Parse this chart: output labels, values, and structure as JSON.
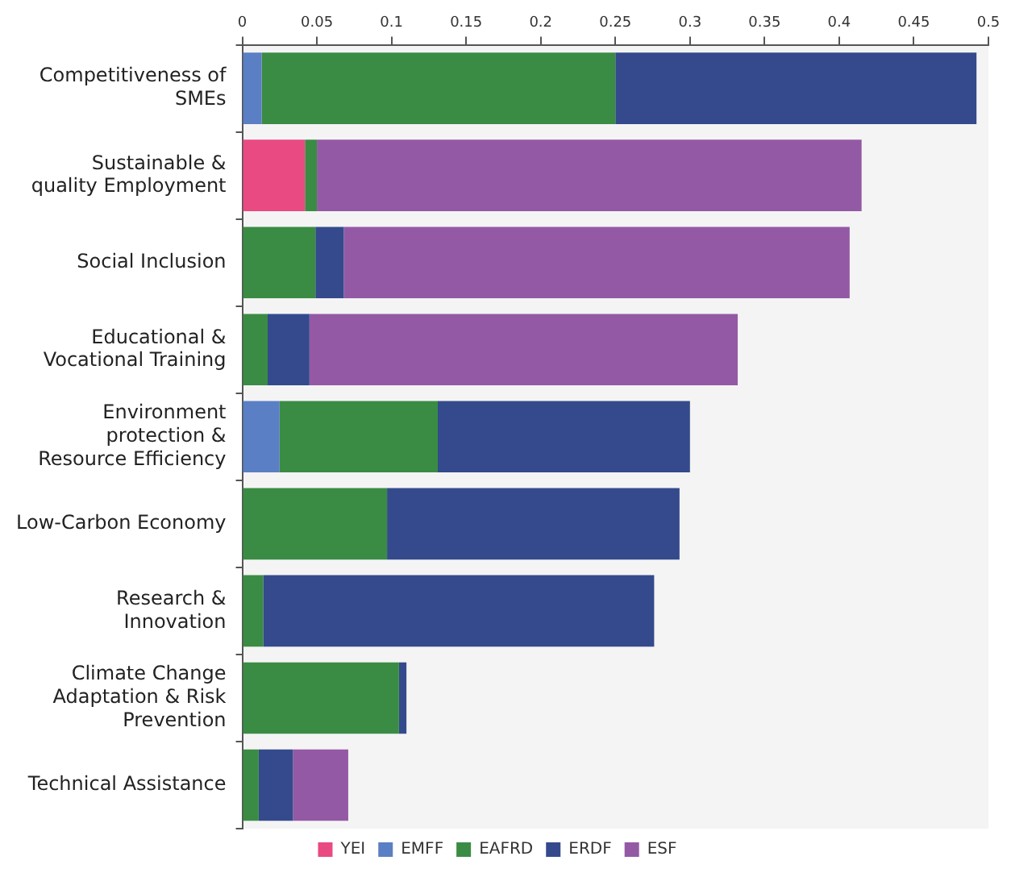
{
  "chart_data": {
    "type": "bar",
    "orientation": "horizontal",
    "stacked": true,
    "categories": [
      "Competitiveness of SMEs",
      "Sustainable & quality Employment",
      "Social Inclusion",
      "Educational & Vocational Training",
      "Environment protection & Resource Efficiency",
      "Low-Carbon Economy",
      "Research & Innovation",
      "Climate Change Adaptation & Risk Prevention",
      "Technical Assistance"
    ],
    "series": [
      {
        "name": "YEI",
        "color": "#e94a82",
        "values": [
          null,
          0.042,
          null,
          null,
          null,
          null,
          null,
          null,
          null
        ]
      },
      {
        "name": "EMFF",
        "color": "#5a7fc4",
        "values": [
          0.013,
          null,
          null,
          null,
          0.025,
          null,
          null,
          null,
          null
        ]
      },
      {
        "name": "EAFRD",
        "color": "#3a8c44",
        "values": [
          0.237,
          0.008,
          0.049,
          0.017,
          0.106,
          0.097,
          0.014,
          0.105,
          0.011
        ]
      },
      {
        "name": "ERDF",
        "color": "#344a8c",
        "values": [
          0.242,
          null,
          0.019,
          0.028,
          0.169,
          0.196,
          0.262,
          0.005,
          0.023
        ]
      },
      {
        "name": "ESF",
        "color": "#9459a5",
        "values": [
          null,
          0.365,
          0.339,
          0.287,
          null,
          null,
          null,
          null,
          0.037
        ]
      }
    ],
    "xlim": [
      0,
      0.5
    ],
    "xticks": [
      0,
      0.05,
      0.1,
      0.15,
      0.2,
      0.25,
      0.3,
      0.35,
      0.4,
      0.45,
      0.5
    ],
    "grid": false,
    "legend": "bottom"
  }
}
